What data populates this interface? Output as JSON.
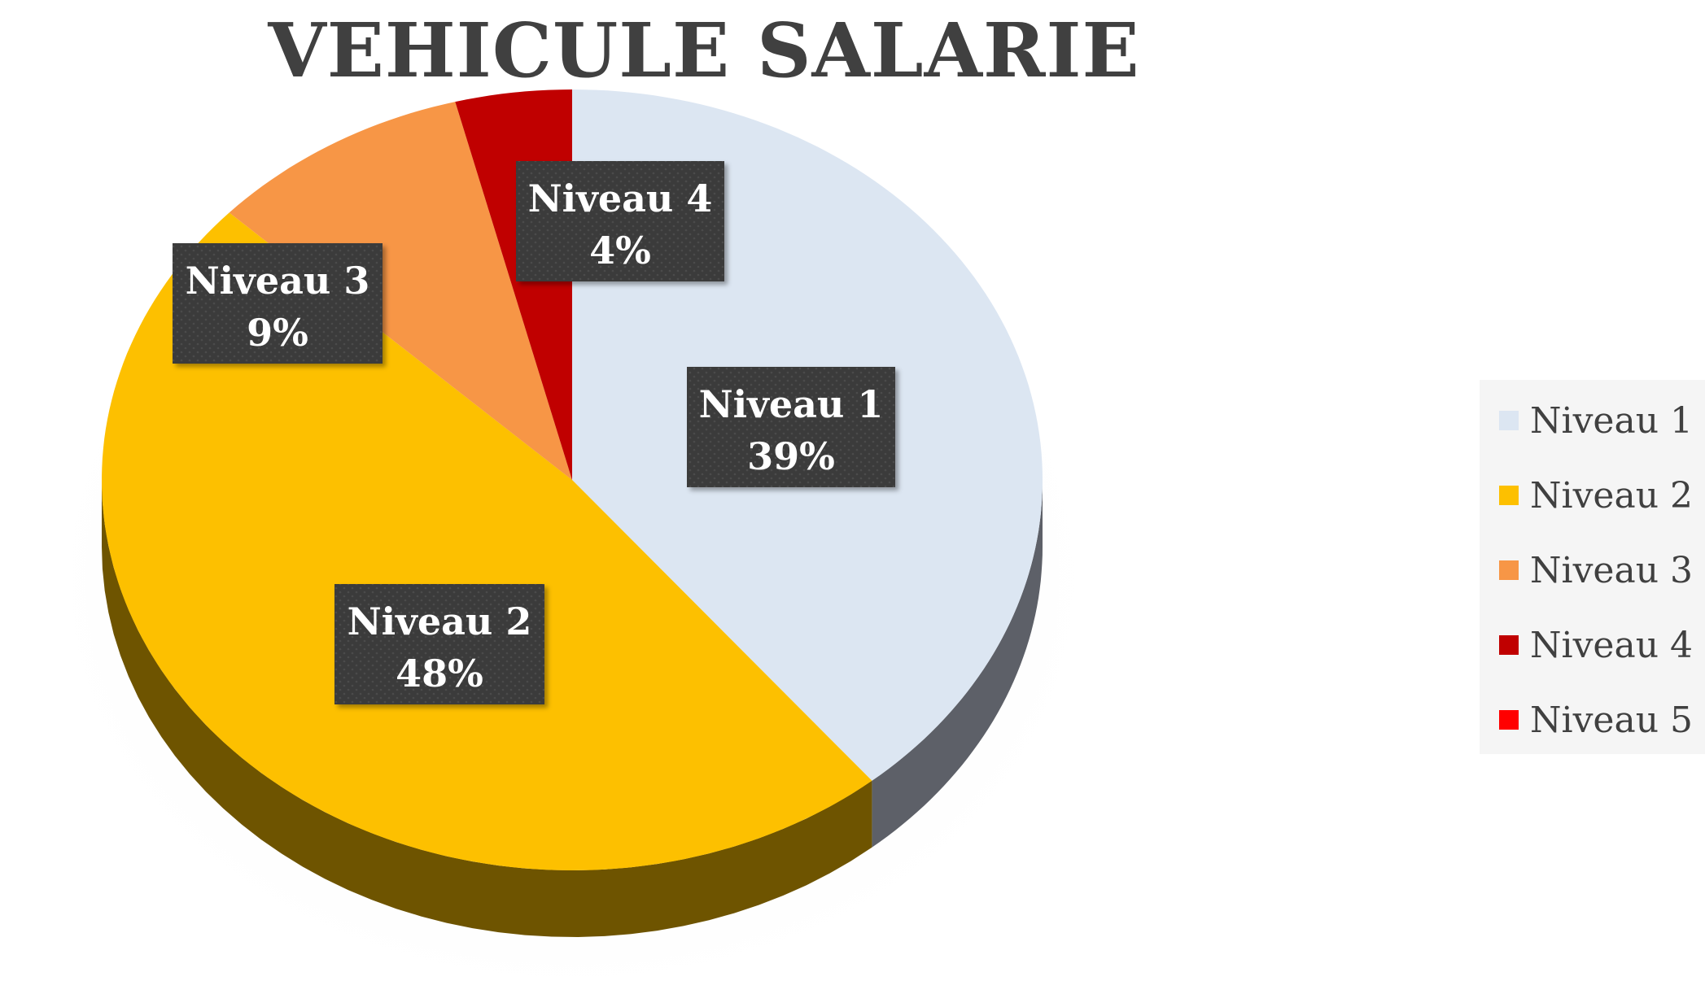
{
  "chart_data": {
    "type": "pie",
    "title": "VEHICULE SALARIE",
    "categories": [
      "Niveau 1",
      "Niveau 2",
      "Niveau 3",
      "Niveau 4",
      "Niveau 5"
    ],
    "values": [
      39,
      48,
      9,
      4,
      0
    ],
    "data_labels": [
      {
        "name": "Niveau 1",
        "value": "39%"
      },
      {
        "name": "Niveau 2",
        "value": "48%"
      },
      {
        "name": "Niveau 3",
        "value": "9%"
      },
      {
        "name": "Niveau 4",
        "value": "4%"
      }
    ],
    "colors": [
      "#dce6f2",
      "#fdc000",
      "#f79646",
      "#c00000",
      "#ff0000"
    ],
    "side_colors": [
      "#5d6068",
      "#6e5400",
      "#8a5224",
      "#6a0000",
      "#8a0000"
    ],
    "legend_position": "right",
    "style": "3d"
  }
}
